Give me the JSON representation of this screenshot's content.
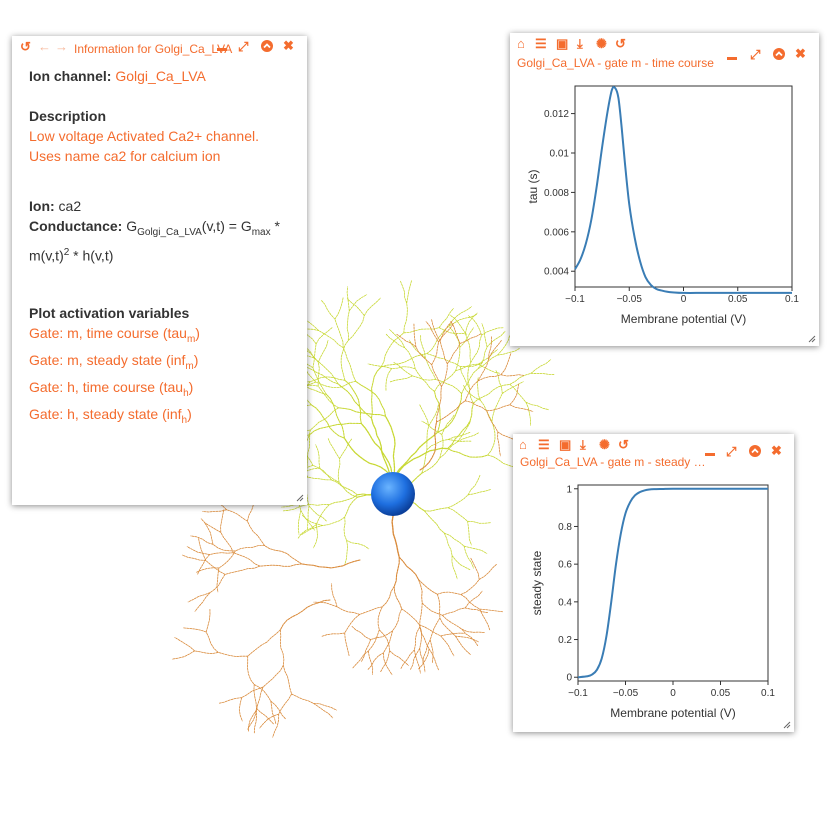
{
  "info_panel": {
    "title": "Information for Golgi_Ca_LVA",
    "ion_channel_label": "Ion channel:",
    "ion_channel_value": "Golgi_Ca_LVA",
    "description_heading": "Description",
    "description_line1": "Low voltage Activated Ca2+ channel.",
    "description_line2": "Uses name ca2 for calcium ion",
    "ion_label": "Ion:",
    "ion_value": "ca2",
    "conductance_label": "Conductance:",
    "conductance_G": "G",
    "conductance_sub1": "Golgi_Ca_LVA",
    "conductance_mid": "(v,t) = G",
    "conductance_sub2": "max",
    "conductance_star": " *",
    "conductance_line2a": "m(v,t)",
    "conductance_sup": "2",
    "conductance_line2b": " * h(v,t)",
    "plot_heading": "Plot activation variables",
    "gates": [
      {
        "text": "Gate: m, time course (tau",
        "sub": "m",
        "close": ")"
      },
      {
        "text": "Gate: m, steady state (inf",
        "sub": "m",
        "close": ")"
      },
      {
        "text": "Gate: h, time course (tau",
        "sub": "h",
        "close": ")"
      },
      {
        "text": "Gate: h, steady state (inf",
        "sub": "h",
        "close": ")"
      }
    ]
  },
  "icons": {
    "history": "↺",
    "back": "←",
    "forward": "→",
    "minimize": "▬",
    "maximize": "⤢",
    "collapse": "⌃",
    "close": "✖",
    "home": "⌂",
    "list": "☰",
    "image": "▣",
    "download": "⤓",
    "spike": "✺"
  },
  "colors": {
    "accent": "#f46c2e",
    "plot_line": "#3a7db5",
    "soma": "#1e6fe0",
    "dendrite_yellow": "#c8d834",
    "axon_orange": "#d98a3a"
  },
  "tau_panel": {
    "title": "Golgi_Ca_LVA - gate m - time course",
    "chart_data": {
      "type": "line",
      "xlabel": "Membrane potential (V)",
      "ylabel": "tau (s)",
      "xlim": [
        -0.1,
        0.1
      ],
      "ylim": [
        0.0032,
        0.0134
      ],
      "x_ticks": [
        -0.1,
        -0.05,
        0,
        0.05,
        0.1
      ],
      "x_tick_labels": [
        "−0.1",
        "−0.05",
        "0",
        "0.05",
        "0.1"
      ],
      "y_ticks": [
        0.004,
        0.006,
        0.008,
        0.01,
        0.012
      ],
      "y_tick_labels": [
        "0.004",
        "0.006",
        "0.008",
        "0.01",
        "0.012"
      ],
      "x": [
        -0.1,
        -0.095,
        -0.09,
        -0.085,
        -0.08,
        -0.075,
        -0.07,
        -0.066,
        -0.063,
        -0.06,
        -0.057,
        -0.054,
        -0.05,
        -0.045,
        -0.04,
        -0.035,
        -0.03,
        -0.025,
        -0.02,
        -0.015,
        -0.01,
        0,
        0.02,
        0.05,
        0.1
      ],
      "y": [
        0.0041,
        0.0046,
        0.0054,
        0.0066,
        0.0083,
        0.0103,
        0.0121,
        0.0132,
        0.0133,
        0.0128,
        0.0113,
        0.0095,
        0.0074,
        0.0057,
        0.0045,
        0.0037,
        0.0033,
        0.0031,
        0.00302,
        0.00296,
        0.00293,
        0.0029,
        0.0029,
        0.0029,
        0.0029
      ]
    }
  },
  "inf_panel": {
    "title": "Golgi_Ca_LVA - gate m - steady …",
    "chart_data": {
      "type": "line",
      "xlabel": "Membrane potential (V)",
      "ylabel": "steady state",
      "xlim": [
        -0.1,
        0.1
      ],
      "ylim": [
        -0.02,
        1.02
      ],
      "x_ticks": [
        -0.1,
        -0.05,
        0,
        0.05,
        0.1
      ],
      "x_tick_labels": [
        "−0.1",
        "−0.05",
        "0",
        "0.05",
        "0.1"
      ],
      "y_ticks": [
        0,
        0.2,
        0.4,
        0.6,
        0.8,
        1
      ],
      "y_tick_labels": [
        "0",
        "0.2",
        "0.4",
        "0.6",
        "0.8",
        "1"
      ],
      "x": [
        -0.1,
        -0.09,
        -0.085,
        -0.08,
        -0.075,
        -0.07,
        -0.065,
        -0.06,
        -0.055,
        -0.05,
        -0.045,
        -0.04,
        -0.035,
        -0.03,
        -0.025,
        -0.02,
        -0.01,
        0,
        0.05,
        0.1
      ],
      "y": [
        0.0,
        0.005,
        0.015,
        0.04,
        0.1,
        0.22,
        0.4,
        0.6,
        0.76,
        0.87,
        0.93,
        0.965,
        0.982,
        0.991,
        0.996,
        0.998,
        0.999,
        1.0,
        1.0,
        1.0
      ]
    }
  }
}
